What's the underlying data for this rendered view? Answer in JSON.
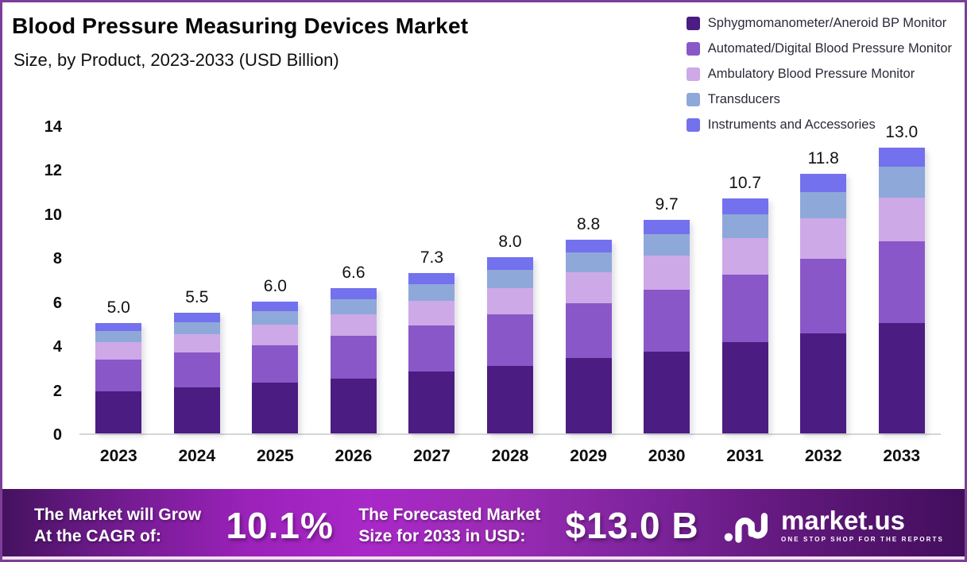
{
  "header": {
    "title": "Blood Pressure Measuring Devices Market",
    "subtitle": "Size, by Product, 2023-2033 (USD Billion)"
  },
  "chart_data": {
    "type": "bar",
    "stacked": true,
    "title": "Blood Pressure Measuring Devices Market Size, by Product, 2023-2033 (USD Billion)",
    "categories": [
      "2023",
      "2024",
      "2025",
      "2026",
      "2027",
      "2028",
      "2029",
      "2030",
      "2031",
      "2032",
      "2033"
    ],
    "series": [
      {
        "name": "Sphygmomanometer/Aneroid BP Monitor",
        "color": "#4b1c82",
        "values": [
          1.9,
          2.1,
          2.32,
          2.5,
          2.82,
          3.07,
          3.42,
          3.73,
          4.15,
          4.55,
          5.0
        ]
      },
      {
        "name": "Automated/Digital Blood Pressure Monitor",
        "color": "#8a57c8",
        "values": [
          1.45,
          1.57,
          1.7,
          1.95,
          2.08,
          2.34,
          2.5,
          2.8,
          3.07,
          3.38,
          3.75
        ]
      },
      {
        "name": "Ambulatory Blood Pressure Monitor",
        "color": "#cda9e8",
        "values": [
          0.8,
          0.85,
          0.92,
          0.95,
          1.12,
          1.18,
          1.4,
          1.57,
          1.65,
          1.85,
          1.95
        ]
      },
      {
        "name": "Transducers",
        "color": "#8fa8da",
        "values": [
          0.5,
          0.55,
          0.61,
          0.7,
          0.75,
          0.84,
          0.9,
          0.95,
          1.08,
          1.2,
          1.42
        ]
      },
      {
        "name": "Instruments and Accessories",
        "color": "#7371ee",
        "values": [
          0.35,
          0.43,
          0.45,
          0.5,
          0.53,
          0.57,
          0.58,
          0.65,
          0.75,
          0.82,
          0.88
        ]
      }
    ],
    "totals_labels": [
      "5.0",
      "5.5",
      "6.0",
      "6.6",
      "7.3",
      "8.0",
      "8.8",
      "9.7",
      "10.7",
      "11.8",
      "13.0"
    ],
    "ylim": [
      0,
      14
    ],
    "yticks": [
      0,
      2,
      4,
      6,
      8,
      10,
      12,
      14
    ],
    "grid": false,
    "legend_position": "top-right"
  },
  "banner": {
    "cagr_label_line1": "The Market will Grow",
    "cagr_label_line2": "At the CAGR of:",
    "cagr_value": "10.1%",
    "forecast_label_line1": "The Forecasted Market",
    "forecast_label_line2": "Size for 2033 in USD:",
    "forecast_value": "$13.0 B",
    "logo_text": "market.us",
    "logo_tagline": "ONE STOP SHOP FOR THE REPORTS"
  }
}
